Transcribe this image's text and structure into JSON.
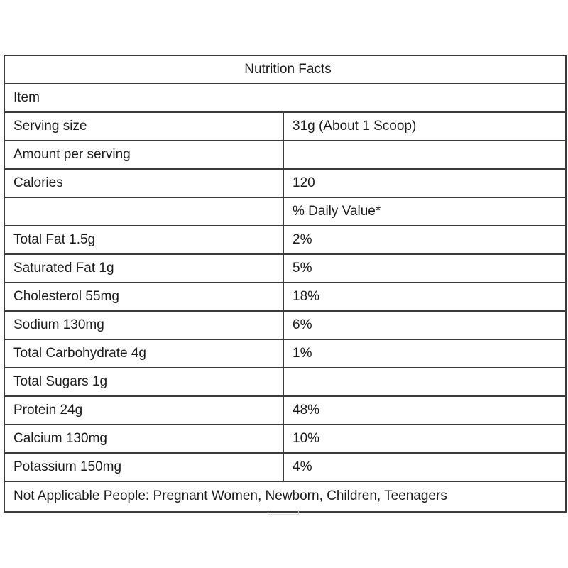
{
  "table": {
    "title": "Nutrition Facts",
    "item_label": "Item",
    "rows": [
      {
        "label": "Serving size",
        "value": "31g (About 1 Scoop)",
        "label_indent": 0,
        "value_indent": 0
      },
      {
        "label": "Amount per serving",
        "value": "",
        "label_indent": 0,
        "value_indent": 0
      },
      {
        "label": "Calories",
        "value": "120",
        "label_indent": 0,
        "value_indent": 0
      },
      {
        "label": "",
        "value": "% Daily Value*",
        "label_indent": 0,
        "value_indent": 0
      },
      {
        "label": "Total Fat 1.5g",
        "value": "2%",
        "label_indent": 0,
        "value_indent": 1
      },
      {
        "label": "Saturated Fat 1g",
        "value": "5%",
        "label_indent": 2,
        "value_indent": 0
      },
      {
        "label": "Cholesterol 55mg",
        "value": "18%",
        "label_indent": 0,
        "value_indent": 0
      },
      {
        "label": "Sodium 130mg",
        "value": "6%",
        "label_indent": 0,
        "value_indent": 0
      },
      {
        "label": "Total Carbohydrate 4g",
        "value": "1%",
        "label_indent": 0,
        "value_indent": 0
      },
      {
        "label": "Total Sugars 1g",
        "value": "",
        "label_indent": 1,
        "value_indent": 0
      },
      {
        "label": "Protein 24g",
        "value": "48%",
        "label_indent": 0,
        "value_indent": 0
      },
      {
        "label": "Calcium 130mg",
        "value": "10%",
        "label_indent": 0,
        "value_indent": 0
      },
      {
        "label": "Potassium 150mg",
        "value": "4%",
        "label_indent": 0,
        "value_indent": 0
      }
    ],
    "footer": "Not Applicable People: Pregnant Women, Newborn, Children, Teenagers"
  },
  "colors": {
    "border": "#3b3b3b",
    "text": "#1b1b1b",
    "background": "#ffffff"
  }
}
